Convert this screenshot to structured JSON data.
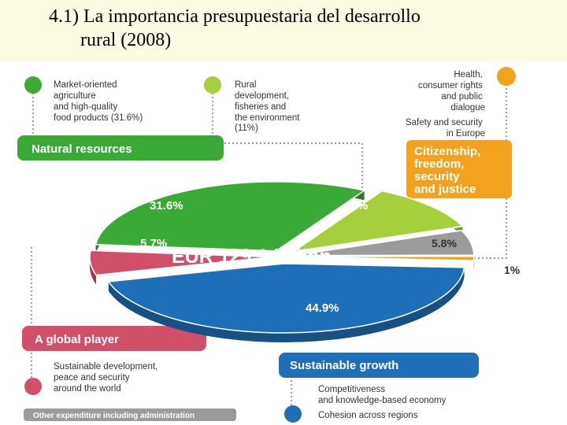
{
  "slide": {
    "title_line1": "4.1) La importancia  presupuestaria del desarrollo",
    "title_line2": "rural (2008)"
  },
  "colors": {
    "dark_green": "#3aa935",
    "light_green": "#a6cf3c",
    "pink": "#d0506a",
    "blue": "#1e6fb8",
    "orange": "#f2a21e",
    "grey": "#9b9b9b",
    "header_bg": "#fdfbe3"
  },
  "labels": {
    "market_line1": "Market-oriented",
    "market_line2": "agriculture",
    "market_line3": "and high-quality",
    "market_line4": "food products (31.6%)",
    "rural_line1": "Rural",
    "rural_line2": "development,",
    "rural_line3": "fisheries and",
    "rural_line4": "the environment",
    "rural_line5": "(11%)",
    "health_line1": "Health,",
    "health_line2": "consumer rights",
    "health_line3": "and public",
    "health_line4": "dialogue",
    "safety_line1": "Safety and security",
    "safety_line2": "in Europe",
    "natural_resources": "Natural resources",
    "citizenship_line1": "Citizenship,",
    "citizenship_line2": "freedom,",
    "citizenship_line3": "security",
    "citizenship_line4": "and justice",
    "global_player": "A global player",
    "global_desc_line1": "Sustainable development,",
    "global_desc_line2": "peace and security",
    "global_desc_line3": "around the world",
    "sustainable_growth": "Sustainable growth",
    "competitiveness_line1": "Competitiveness",
    "competitiveness_line2": "and knowledge-based economy",
    "cohesion": "Cohesion across regions",
    "other_expenditure": "Other expenditure including administration",
    "total": "EUR 129.1 billion"
  },
  "chart_data": {
    "type": "pie",
    "total": "EUR 129.1 billion",
    "slices": [
      {
        "label": "Natural resources",
        "value": 31.6,
        "display": "31.6%",
        "color": "#3aa935"
      },
      {
        "label": "Rural development, fisheries and the environment",
        "value": 11,
        "display": "11%",
        "color": "#a6cf3c"
      },
      {
        "label": "Other expenditure including administration",
        "value": 5.8,
        "display": "5.8%",
        "color": "#9b9b9b"
      },
      {
        "label": "Citizenship, freedom, security and justice",
        "value": 1,
        "display": "1%",
        "color": "#f2a21e"
      },
      {
        "label": "Sustainable growth",
        "value": 44.9,
        "display": "44.9%",
        "color": "#1e6fb8"
      },
      {
        "label": "A global player",
        "value": 5.7,
        "display": "5.7%",
        "color": "#d0506a"
      }
    ]
  }
}
